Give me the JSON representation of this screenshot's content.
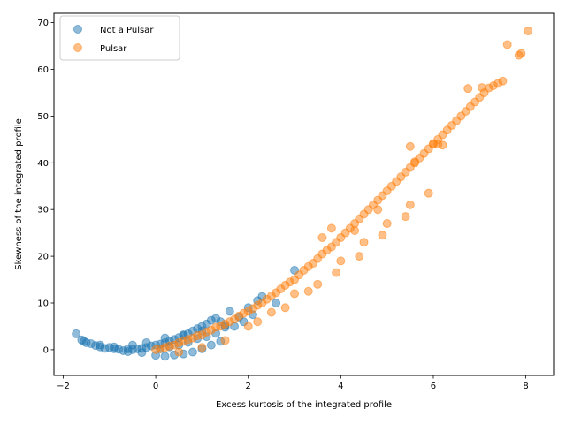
{
  "chart_data": {
    "type": "scatter",
    "title": "",
    "xlabel": "Excess kurtosis of the integrated profile",
    "ylabel": "Skewness of the integrated profile",
    "xlim": [
      -2.2,
      8.6
    ],
    "ylim": [
      -5.5,
      72
    ],
    "xticks": [
      -2,
      0,
      2,
      4,
      6,
      8
    ],
    "yticks": [
      0,
      10,
      20,
      30,
      40,
      50,
      60,
      70
    ],
    "grid": false,
    "legend_position": "top-left",
    "series": [
      {
        "name": "Not a Pulsar",
        "color": "#1f77b4",
        "x": [
          -1.72,
          -1.6,
          -1.55,
          -1.4,
          -1.3,
          -1.2,
          -1.1,
          -1.0,
          -0.9,
          -0.8,
          -0.7,
          -0.6,
          -0.5,
          -0.4,
          -0.3,
          -0.2,
          -0.1,
          0.0,
          0.1,
          0.2,
          0.3,
          0.4,
          0.5,
          0.6,
          0.7,
          0.8,
          0.9,
          1.0,
          1.1,
          1.2,
          1.3,
          1.4,
          1.5,
          1.6,
          1.7,
          1.8,
          2.0,
          2.2,
          2.3,
          2.6,
          3.0,
          -1.5,
          -1.2,
          -0.9,
          -0.6,
          -0.3,
          0.0,
          0.2,
          0.4,
          0.6,
          0.8,
          1.0,
          1.2,
          1.4,
          0.1,
          0.3,
          0.5,
          0.7,
          0.9,
          1.1,
          1.3,
          -0.5,
          -0.2,
          0.2,
          0.6,
          1.0,
          1.5,
          1.9,
          2.1
        ],
        "y": [
          3.4,
          2.1,
          1.8,
          1.3,
          0.9,
          0.6,
          0.3,
          0.5,
          0.2,
          0.1,
          -0.2,
          -0.4,
          0.0,
          0.2,
          0.3,
          0.5,
          0.8,
          1.0,
          1.2,
          1.5,
          1.9,
          2.2,
          2.6,
          3.0,
          3.4,
          4.0,
          4.5,
          5.0,
          5.5,
          6.3,
          6.7,
          6.0,
          5.2,
          8.2,
          5.0,
          7.0,
          9.0,
          10.5,
          11.4,
          10.0,
          17.0,
          1.5,
          1.0,
          0.6,
          0.2,
          -0.6,
          -1.2,
          -1.4,
          -1.1,
          -0.9,
          -0.5,
          0.2,
          1.0,
          1.8,
          0.2,
          0.6,
          1.0,
          1.6,
          2.4,
          2.8,
          3.5,
          1.0,
          1.5,
          2.5,
          3.2,
          4.0,
          4.8,
          6.0,
          7.5
        ]
      },
      {
        "name": "Pulsar",
        "color": "#ff7f0e",
        "x": [
          0.0,
          0.1,
          0.2,
          0.3,
          0.4,
          0.5,
          0.6,
          0.7,
          0.8,
          0.9,
          1.0,
          1.1,
          1.2,
          1.3,
          1.4,
          1.5,
          1.6,
          1.7,
          1.8,
          1.9,
          2.0,
          2.1,
          2.2,
          2.3,
          2.4,
          2.5,
          2.6,
          2.7,
          2.8,
          2.9,
          3.0,
          3.1,
          3.2,
          3.3,
          3.4,
          3.5,
          3.6,
          3.7,
          3.8,
          3.9,
          4.0,
          4.1,
          4.2,
          4.3,
          4.4,
          4.5,
          4.6,
          4.7,
          4.8,
          4.9,
          5.0,
          5.1,
          5.2,
          5.3,
          5.4,
          5.5,
          5.6,
          5.7,
          5.8,
          5.9,
          6.0,
          6.1,
          6.2,
          6.3,
          6.4,
          6.5,
          6.6,
          6.7,
          6.8,
          6.9,
          7.0,
          7.1,
          7.2,
          7.3,
          7.4,
          7.5,
          7.6,
          7.85,
          7.9,
          8.05,
          6.75,
          7.05,
          5.5,
          5.6,
          6.0,
          6.1,
          6.2,
          3.6,
          3.8,
          4.3,
          4.8,
          2.0,
          2.5,
          3.0,
          3.5,
          4.0,
          4.5,
          5.0,
          5.5,
          0.5,
          1.0,
          1.5,
          2.2,
          2.8,
          3.3,
          3.9,
          4.4,
          4.9,
          5.4,
          5.9
        ],
        "y": [
          0.0,
          0.2,
          0.5,
          0.8,
          1.0,
          1.5,
          1.8,
          2.2,
          2.5,
          3.0,
          3.2,
          3.8,
          4.2,
          4.8,
          5.0,
          5.5,
          6.0,
          6.5,
          7.2,
          7.8,
          8.2,
          8.8,
          9.5,
          10.0,
          10.8,
          11.5,
          12.2,
          13.0,
          13.8,
          14.5,
          15.0,
          16.0,
          17.0,
          17.8,
          18.5,
          19.5,
          20.5,
          21.3,
          22.0,
          23.0,
          24.0,
          25.0,
          26.0,
          27.0,
          28.0,
          29.0,
          30.0,
          31.0,
          32.0,
          33.0,
          34.0,
          35.0,
          36.0,
          37.0,
          38.0,
          39.0,
          40.0,
          41.0,
          42.0,
          43.0,
          44.0,
          45.0,
          46.0,
          47.0,
          48.0,
          49.0,
          50.0,
          51.0,
          52.0,
          53.0,
          54.0,
          55.0,
          56.0,
          56.5,
          57.0,
          57.5,
          65.3,
          63.0,
          63.4,
          68.2,
          55.9,
          56.1,
          43.5,
          40.2,
          44.1,
          44.0,
          43.8,
          24.0,
          26.0,
          25.5,
          30.0,
          5.0,
          8.0,
          12.0,
          14.0,
          19.0,
          23.0,
          27.0,
          31.0,
          -0.5,
          0.5,
          2.0,
          6.0,
          9.0,
          12.5,
          16.5,
          20.0,
          24.5,
          28.5,
          33.5
        ]
      }
    ]
  }
}
